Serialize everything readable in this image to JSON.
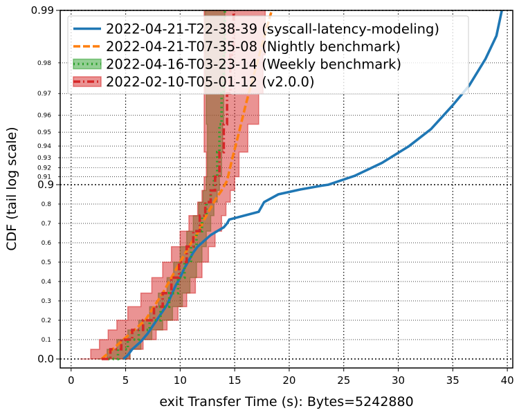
{
  "chart_data": {
    "type": "line",
    "xlabel": "exit Transfer Time (s): Bytes=5242880",
    "ylabel": "CDF (tail log scale)",
    "xlim": [
      -1,
      40.5
    ],
    "ylim": [
      -0.06,
      0.99
    ],
    "yscale": "tail-log",
    "grid": true,
    "legend_position": "top-left",
    "x_ticks": [
      0,
      5,
      10,
      15,
      20,
      25,
      30,
      35,
      40
    ],
    "x_tick_labels": [
      "0",
      "5",
      "10",
      "15",
      "20",
      "25",
      "30",
      "35",
      "40"
    ],
    "y_major_ticks": [
      0.0,
      0.9,
      0.99
    ],
    "y_major_tick_labels": [
      "0.0",
      "0.9",
      "0.99"
    ],
    "y_minor_ticks": [
      0.1,
      0.2,
      0.3,
      0.4,
      0.5,
      0.6,
      0.7,
      0.8,
      0.91,
      0.92,
      0.93,
      0.94,
      0.95,
      0.96,
      0.97,
      0.98
    ],
    "y_minor_tick_labels": [
      "0.1",
      "0.2",
      "0.3",
      "0.4",
      "0.5",
      "0.6",
      "0.7",
      "0.8",
      "0.91",
      "0.92",
      "0.93",
      "0.94",
      "0.95",
      "0.96",
      "0.97",
      "0.98"
    ],
    "series": [
      {
        "name": "2022-04-21-T22-38-39 (syscall-latency-modeling)",
        "color": "#1f77b4",
        "style": "solid",
        "x": [
          4.8,
          5.2,
          5.6,
          6.4,
          7.0,
          7.6,
          8.2,
          8.8,
          9.2,
          9.6,
          10.0,
          10.4,
          10.8,
          11.2,
          11.6,
          12.2,
          12.8,
          13.4,
          14.0,
          14.3,
          14.5,
          17.2,
          17.7,
          19.0,
          21.0,
          23.0,
          23.6,
          26.0,
          28.5,
          31.0,
          33.0,
          35.0,
          36.5,
          38.0,
          39.0,
          39.5
        ],
        "y": [
          0.0,
          0.02,
          0.05,
          0.09,
          0.13,
          0.18,
          0.23,
          0.28,
          0.33,
          0.38,
          0.42,
          0.47,
          0.51,
          0.55,
          0.58,
          0.61,
          0.64,
          0.66,
          0.68,
          0.7,
          0.72,
          0.76,
          0.81,
          0.85,
          0.875,
          0.895,
          0.9,
          0.911,
          0.925,
          0.94,
          0.952,
          0.965,
          0.973,
          0.981,
          0.986,
          0.99
        ]
      },
      {
        "name": "2022-04-21-T07-35-08 (Nightly benchmark)",
        "color": "#ff7f0e",
        "style": "dashed",
        "x": [
          2.8,
          3.8,
          4.8,
          5.8,
          6.8,
          7.6,
          8.4,
          9.2,
          10.0,
          10.8,
          11.6,
          12.2,
          12.8,
          13.3,
          13.8,
          14.3,
          14.8,
          15.4,
          16.0,
          16.8,
          17.6,
          18.4
        ],
        "y": [
          0.0,
          0.05,
          0.1,
          0.15,
          0.2,
          0.27,
          0.34,
          0.42,
          0.5,
          0.58,
          0.65,
          0.72,
          0.78,
          0.83,
          0.87,
          0.905,
          0.93,
          0.95,
          0.965,
          0.977,
          0.985,
          0.99
        ]
      },
      {
        "name": "2022-04-16-T03-23-14 (Weekly benchmark)",
        "color": "#2ca02c",
        "style": "dotted",
        "x": [
          3.4,
          4.3,
          5.2,
          6.2,
          7.2,
          8.2,
          9.0,
          9.8,
          10.4,
          11.0,
          11.5,
          12.0,
          12.4,
          12.8,
          13.1,
          13.4,
          13.6,
          13.8,
          14.0,
          14.1
        ],
        "y": [
          0.0,
          0.05,
          0.1,
          0.15,
          0.2,
          0.27,
          0.34,
          0.42,
          0.5,
          0.58,
          0.66,
          0.74,
          0.81,
          0.87,
          0.91,
          0.935,
          0.955,
          0.97,
          0.982,
          0.99
        ],
        "band_lower": [
          4.5,
          5.4,
          6.4,
          7.4,
          8.4,
          9.3,
          10.2,
          10.9,
          11.5,
          12.0,
          12.4,
          12.8,
          13.1,
          13.4,
          13.6,
          13.8,
          13.9,
          14.0,
          14.1,
          14.1
        ],
        "band_upper": [
          2.4,
          3.3,
          4.2,
          5.2,
          6.2,
          7.2,
          8.0,
          8.8,
          9.4,
          10.0,
          10.6,
          11.2,
          11.7,
          12.1,
          12.4,
          12.5,
          12.5,
          12.4,
          12.3,
          12.3
        ]
      },
      {
        "name": "2022-02-10-T05-01-12 (v2.0.0)",
        "color": "#d62728",
        "style": "dashdot",
        "x": [
          2.8,
          3.6,
          4.6,
          5.6,
          6.6,
          7.6,
          8.4,
          9.2,
          9.9,
          10.6,
          11.2,
          11.8,
          12.3,
          12.8,
          13.2,
          13.6,
          14.0,
          14.3,
          14.6,
          14.9
        ],
        "y": [
          0.0,
          0.05,
          0.1,
          0.15,
          0.2,
          0.27,
          0.34,
          0.42,
          0.5,
          0.58,
          0.66,
          0.74,
          0.81,
          0.87,
          0.91,
          0.935,
          0.955,
          0.97,
          0.982,
          0.99
        ],
        "band_lower": [
          4.4,
          5.4,
          6.6,
          7.8,
          8.8,
          9.8,
          10.6,
          11.4,
          12.0,
          12.6,
          13.2,
          13.8,
          14.2,
          14.6,
          15.0,
          15.4,
          16.2,
          17.2,
          17.6,
          17.8
        ],
        "band_upper": [
          0.8,
          1.8,
          2.6,
          3.4,
          4.2,
          5.2,
          6.4,
          7.4,
          8.4,
          9.2,
          10.0,
          10.8,
          11.6,
          12.0,
          12.2,
          12.4,
          12.2,
          12.2,
          12.2,
          12.2
        ]
      }
    ]
  }
}
